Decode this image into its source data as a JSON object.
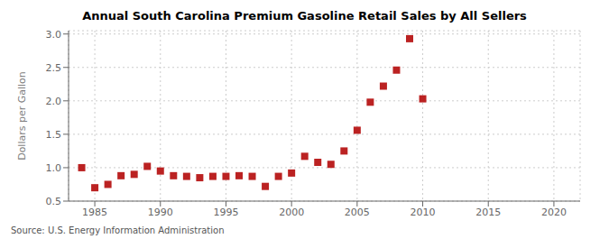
{
  "chart_data": {
    "type": "scatter",
    "title": "Annual South Carolina Premium Gasoline Retail Sales by All Sellers",
    "ylabel": "Dollars per Gallon",
    "source": "Source: U.S. Energy Information Administration",
    "x": [
      1984,
      1985,
      1986,
      1987,
      1988,
      1989,
      1990,
      1991,
      1992,
      1993,
      1994,
      1995,
      1996,
      1997,
      1998,
      1999,
      2000,
      2001,
      2002,
      2003,
      2004,
      2005,
      2006,
      2007,
      2008,
      2009,
      2010
    ],
    "values": [
      1.0,
      0.7,
      0.75,
      0.88,
      0.9,
      1.02,
      0.95,
      0.88,
      0.87,
      0.85,
      0.87,
      0.87,
      0.88,
      0.87,
      0.72,
      0.87,
      0.92,
      1.17,
      1.08,
      1.05,
      1.25,
      1.56,
      1.98,
      2.22,
      2.46,
      2.93,
      2.03
    ],
    "color": "#bb2222",
    "marker": "square",
    "xlim": [
      1983,
      2022
    ],
    "xticks": [
      1985,
      1990,
      1995,
      2000,
      2005,
      2010,
      2015,
      2020
    ],
    "ylim": [
      0.5,
      3.05
    ],
    "yticks": [
      0.5,
      {
        "value": 1.0,
        "label": "1.0"
      },
      1.5,
      {
        "value": 2.0,
        "label": "2.0"
      },
      2.5,
      {
        "value": 3.0,
        "label": "3.0"
      }
    ],
    "grid": true
  }
}
